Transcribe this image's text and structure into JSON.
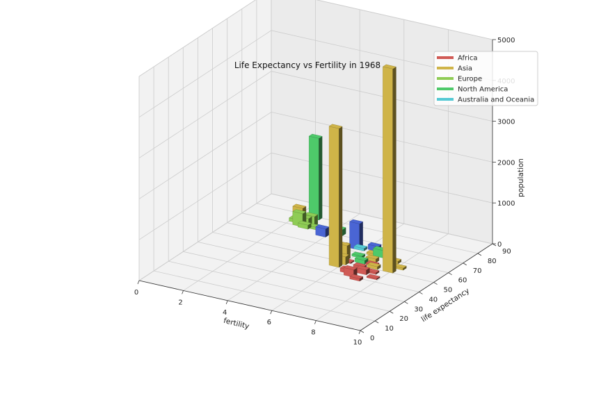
{
  "chart_data": {
    "type": "bar3d",
    "title": "Life Expectancy vs Fertility in 1968",
    "xlabel": "fertility",
    "ylabel": "life expectancy",
    "zlabel": "population",
    "xlim": [
      0,
      10
    ],
    "ylim": [
      0,
      90
    ],
    "zlim": [
      0,
      5000
    ],
    "xticks": [
      "0",
      "2",
      "4",
      "6",
      "8",
      "10"
    ],
    "yticks": [
      "0",
      "10",
      "20",
      "30",
      "40",
      "50",
      "60",
      "70",
      "80",
      "90"
    ],
    "zticks": [
      "0",
      "1000",
      "2000",
      "3000",
      "4000",
      "5000"
    ],
    "grid": true,
    "legend_position": "top-right",
    "legend": [
      {
        "name": "Africa",
        "color": "#d05a55"
      },
      {
        "name": "Asia",
        "color": "#cfb448"
      },
      {
        "name": "Europe",
        "color": "#8fcc55"
      },
      {
        "name": "North America",
        "color": "#4ec96a"
      },
      {
        "name": "Australia and Oceania",
        "color": "#55c9d4"
      }
    ],
    "series": [
      {
        "name": "Africa",
        "color": "#d05a55",
        "points": [
          {
            "x": 6.6,
            "y": 40,
            "z": 180
          },
          {
            "x": 6.9,
            "y": 44,
            "z": 120
          },
          {
            "x": 6.3,
            "y": 42,
            "z": 90
          },
          {
            "x": 7.0,
            "y": 38,
            "z": 60
          },
          {
            "x": 6.5,
            "y": 48,
            "z": 50
          },
          {
            "x": 7.2,
            "y": 46,
            "z": 40
          },
          {
            "x": 5.8,
            "y": 50,
            "z": 30
          },
          {
            "x": 6.8,
            "y": 52,
            "z": 40
          },
          {
            "x": 7.5,
            "y": 42,
            "z": 30
          }
        ]
      },
      {
        "name": "Asia",
        "color": "#cfb448",
        "points": [
          {
            "x": 5.6,
            "y": 45,
            "z": 3400
          },
          {
            "x": 7.7,
            "y": 50,
            "z": 5000
          },
          {
            "x": 2.3,
            "y": 70,
            "z": 450
          },
          {
            "x": 5.5,
            "y": 52,
            "z": 350
          },
          {
            "x": 5.7,
            "y": 48,
            "z": 200
          },
          {
            "x": 6.6,
            "y": 55,
            "z": 90
          },
          {
            "x": 7.4,
            "y": 58,
            "z": 60
          },
          {
            "x": 6.3,
            "y": 60,
            "z": 50
          },
          {
            "x": 5.1,
            "y": 62,
            "z": 40
          },
          {
            "x": 7.0,
            "y": 50,
            "z": 70
          },
          {
            "x": 7.9,
            "y": 54,
            "z": 50
          }
        ]
      },
      {
        "name": "Europe",
        "color": "#8fcc55",
        "points": [
          {
            "x": 2.3,
            "y": 70,
            "z": 320
          },
          {
            "x": 2.7,
            "y": 72,
            "z": 250
          },
          {
            "x": 2.5,
            "y": 71,
            "z": 200
          },
          {
            "x": 2.2,
            "y": 73,
            "z": 120
          },
          {
            "x": 2.6,
            "y": 69,
            "z": 100
          },
          {
            "x": 2.0,
            "y": 72,
            "z": 80
          },
          {
            "x": 2.9,
            "y": 70,
            "z": 60
          },
          {
            "x": 2.4,
            "y": 74,
            "z": 40
          }
        ]
      },
      {
        "name": "North America",
        "color": "#4ec96a",
        "points": [
          {
            "x": 2.5,
            "y": 78,
            "z": 2000
          },
          {
            "x": 4.1,
            "y": 70,
            "z": 150
          },
          {
            "x": 6.6,
            "y": 60,
            "z": 180
          },
          {
            "x": 6.3,
            "y": 52,
            "z": 90
          },
          {
            "x": 5.9,
            "y": 56,
            "z": 50
          }
        ]
      },
      {
        "name": "Australia and Oceania",
        "color": "#55c9d4",
        "points": [
          {
            "x": 5.6,
            "y": 62,
            "z": 60
          },
          {
            "x": 3.2,
            "y": 71,
            "z": 40
          },
          {
            "x": 5.3,
            "y": 50,
            "z": 30
          }
        ]
      },
      {
        "name": "",
        "color": "#4a65d4",
        "points": [
          {
            "x": 5.4,
            "y": 62,
            "z": 640
          },
          {
            "x": 3.6,
            "y": 66,
            "z": 200
          },
          {
            "x": 6.1,
            "y": 64,
            "z": 120
          }
        ]
      }
    ]
  }
}
